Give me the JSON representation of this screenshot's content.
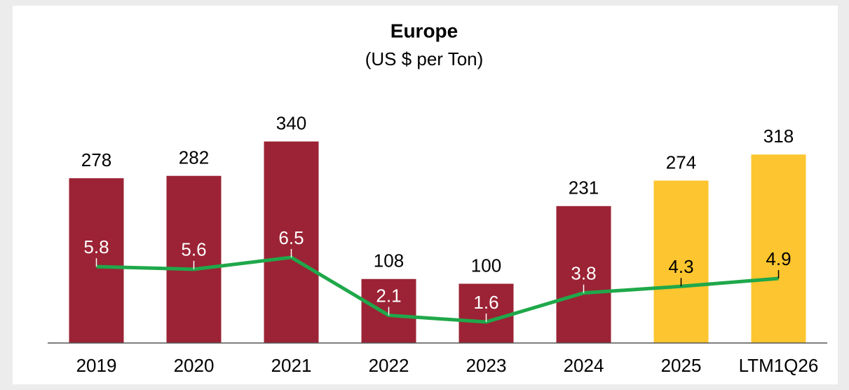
{
  "chart_data": {
    "type": "combo",
    "title": "Europe",
    "subtitle": "(US $ per Ton)",
    "categories": [
      "2019",
      "2020",
      "2021",
      "2022",
      "2023",
      "2024",
      "2025",
      "LTM1Q26"
    ],
    "series": [
      {
        "type": "bar",
        "values": [
          278,
          282,
          340,
          108,
          100,
          231,
          274,
          318
        ],
        "colors": [
          "#9b2335",
          "#9b2335",
          "#9b2335",
          "#9b2335",
          "#9b2335",
          "#9b2335",
          "#fdc52f",
          "#fdc52f"
        ]
      },
      {
        "type": "line",
        "axis": "y2",
        "color": "#1fa84a",
        "values": [
          5.8,
          5.6,
          6.5,
          2.1,
          1.6,
          3.8,
          4.3,
          4.9
        ],
        "label_colors": [
          "#ffffff",
          "#ffffff",
          "#ffffff",
          "#ffffff",
          "#ffffff",
          "#ffffff",
          "#000000",
          "#000000"
        ]
      }
    ],
    "ylim": [
      0,
      400
    ],
    "y2lim": [
      0,
      18
    ]
  }
}
